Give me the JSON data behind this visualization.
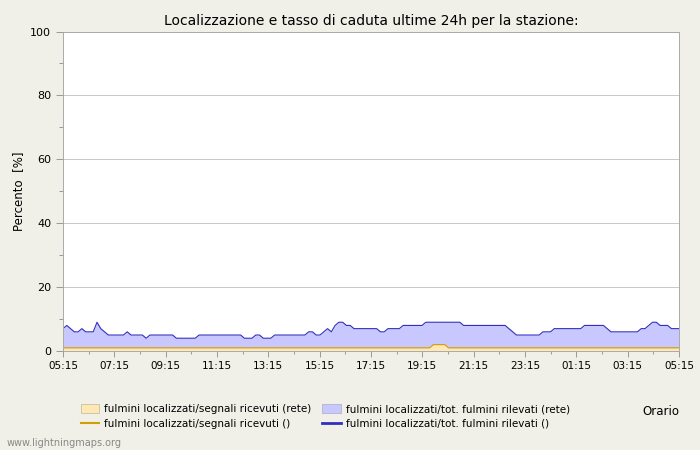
{
  "title": "Localizzazione e tasso di caduta ultime 24h per la stazione:",
  "ylabel": "Percento  [%]",
  "xlabel": "Orario",
  "watermark": "www.lightningmaps.org",
  "x_tick_labels": [
    "05:15",
    "07:15",
    "09:15",
    "11:15",
    "13:15",
    "15:15",
    "17:15",
    "19:15",
    "21:15",
    "23:15",
    "01:15",
    "03:15",
    "05:15"
  ],
  "ylim": [
    0,
    100
  ],
  "yticks": [
    0,
    20,
    40,
    60,
    80,
    100
  ],
  "minor_yticks": [
    10,
    30,
    50,
    70,
    90
  ],
  "fill_blue_values": [
    7,
    8,
    7,
    6,
    6,
    7,
    6,
    6,
    6,
    9,
    7,
    6,
    5,
    5,
    5,
    5,
    5,
    6,
    5,
    5,
    5,
    5,
    4,
    5,
    5,
    5,
    5,
    5,
    5,
    5,
    4,
    4,
    4,
    4,
    4,
    4,
    5,
    5,
    5,
    5,
    5,
    5,
    5,
    5,
    5,
    5,
    5,
    5,
    4,
    4,
    4,
    5,
    5,
    4,
    4,
    4,
    5,
    5,
    5,
    5,
    5,
    5,
    5,
    5,
    5,
    6,
    6,
    5,
    5,
    6,
    7,
    6,
    8,
    9,
    9,
    8,
    8,
    7,
    7,
    7,
    7,
    7,
    7,
    7,
    6,
    6,
    7,
    7,
    7,
    7,
    8,
    8,
    8,
    8,
    8,
    8,
    9,
    9,
    9,
    9,
    9,
    9,
    9,
    9,
    9,
    9,
    8,
    8,
    8,
    8,
    8,
    8,
    8,
    8,
    8,
    8,
    8,
    8,
    7,
    6,
    5,
    5,
    5,
    5,
    5,
    5,
    5,
    6,
    6,
    6,
    7,
    7,
    7,
    7,
    7,
    7,
    7,
    7,
    8,
    8,
    8,
    8,
    8,
    8,
    7,
    6,
    6,
    6,
    6,
    6,
    6,
    6,
    6,
    7,
    7,
    8,
    9,
    9,
    8,
    8,
    8,
    7,
    7,
    7
  ],
  "fill_yellow_values": [
    1,
    1,
    1,
    1,
    1,
    1,
    1,
    1,
    1,
    1,
    1,
    1,
    1,
    1,
    1,
    1,
    1,
    1,
    1,
    1,
    1,
    1,
    1,
    1,
    1,
    1,
    1,
    1,
    1,
    1,
    1,
    1,
    1,
    1,
    1,
    1,
    1,
    1,
    1,
    1,
    1,
    1,
    1,
    1,
    1,
    1,
    1,
    1,
    1,
    1,
    1,
    1,
    1,
    1,
    1,
    1,
    1,
    1,
    1,
    1,
    1,
    1,
    1,
    1,
    1,
    1,
    1,
    1,
    1,
    1,
    1,
    1,
    1,
    1,
    1,
    1,
    1,
    1,
    1,
    1,
    1,
    1,
    1,
    1,
    1,
    1,
    1,
    1,
    1,
    1,
    1,
    1,
    1,
    1,
    1,
    1,
    1,
    1,
    2,
    2,
    2,
    2,
    1,
    1,
    1,
    1,
    1,
    1,
    1,
    1,
    1,
    1,
    1,
    1,
    1,
    1,
    1,
    1,
    1,
    1,
    1,
    1,
    1,
    1,
    1,
    1,
    1,
    1,
    1,
    1,
    1,
    1,
    1,
    1,
    1,
    1,
    1,
    1,
    1,
    1,
    1,
    1,
    1,
    1,
    1,
    1,
    1,
    1,
    1,
    1,
    1,
    1,
    1,
    1,
    1,
    1,
    1,
    1,
    1,
    1,
    1,
    1,
    1,
    1
  ],
  "fill_blue_color": "#c8c8ff",
  "fill_yellow_color": "#ffe8b4",
  "line_blue_color": "#3030c0",
  "line_yellow_color": "#d0a000",
  "bg_color": "#f0f0e8",
  "plot_bg_color": "#ffffff",
  "grid_color": "#c8c8c8",
  "legend_items": [
    {
      "label": "fulmini localizzati/segnali ricevuti (rete)",
      "type": "fill",
      "color": "#ffe8b4"
    },
    {
      "label": "fulmini localizzati/segnali ricevuti ()",
      "type": "line",
      "color": "#d0a000"
    },
    {
      "label": "fulmini localizzati/tot. fulmini rilevati (rete)",
      "type": "fill",
      "color": "#c8c8ff"
    },
    {
      "label": "fulmini localizzati/tot. fulmini rilevati ()",
      "type": "line",
      "color": "#3030c0"
    }
  ]
}
